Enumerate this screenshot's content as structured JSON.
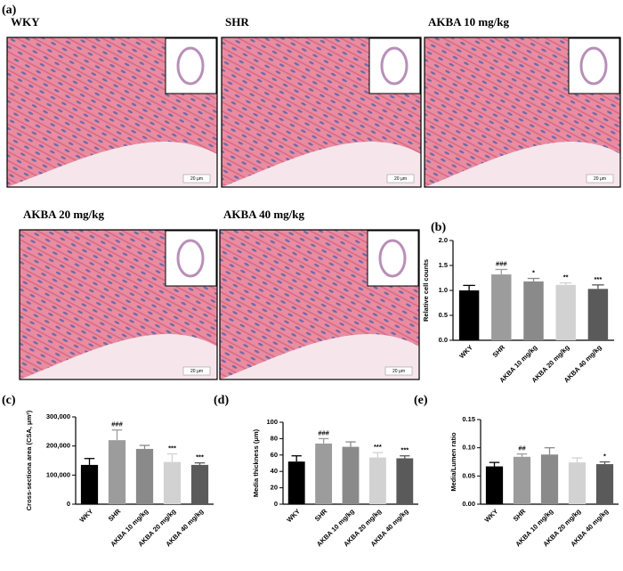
{
  "figure": {
    "panel_label": "(a)",
    "images": [
      {
        "title": "WKY",
        "scale": "20 μm"
      },
      {
        "title": "SHR",
        "scale": "20 μm"
      },
      {
        "title": "AKBA 10 mg/kg",
        "scale": "20 μm"
      },
      {
        "title": "AKBA 20 mg/kg",
        "scale": "20 μm"
      },
      {
        "title": "AKBA 40 mg/kg",
        "scale": "20 μm"
      }
    ]
  },
  "chart_data": [
    {
      "type": "bar",
      "panel_label": "(b)",
      "y_label": "Relative cell counts",
      "categories": [
        "WKY",
        "SHR",
        "AKBA 10 mg/kg",
        "AKBA 20 mg/kg",
        "AKBA 40 mg/kg"
      ],
      "values": [
        1.0,
        1.32,
        1.18,
        1.11,
        1.03
      ],
      "errors": [
        0.1,
        0.1,
        0.06,
        0.04,
        0.08
      ],
      "annotations": [
        null,
        "###",
        "*",
        "**",
        "***"
      ],
      "colors": [
        "#000000",
        "#9c9c9c",
        "#8a8a8a",
        "#d2d2d2",
        "#5a5a5a"
      ],
      "ylim": [
        0,
        2
      ],
      "yticks": [
        {
          "value": 0,
          "label": "0.0"
        },
        0.5,
        {
          "value": 1,
          "label": "1.0"
        },
        1.5,
        {
          "value": 2,
          "label": "2.0"
        }
      ]
    },
    {
      "type": "bar",
      "panel_label": "(c)",
      "y_label": "Cross-sectiona area (CSA, μm²)",
      "categories": [
        "WKY",
        "SHR",
        "AKBA 10 mg/kg",
        "AKBA 20 mg/kg",
        "AKBA 40 mg/kg"
      ],
      "values": [
        135000,
        220000,
        190000,
        145000,
        135000
      ],
      "errors": [
        22000,
        35000,
        12000,
        28000,
        7000
      ],
      "annotations": [
        null,
        "###",
        null,
        "***",
        "***"
      ],
      "colors": [
        "#000000",
        "#9c9c9c",
        "#8a8a8a",
        "#d2d2d2",
        "#5a5a5a"
      ],
      "ylim": [
        0,
        300000
      ],
      "yticks": [
        0,
        {
          "value": 100000,
          "label": "100,000"
        },
        {
          "value": 200000,
          "label": "200,000"
        },
        {
          "value": 300000,
          "label": "300,000"
        }
      ]
    },
    {
      "type": "bar",
      "panel_label": "(d)",
      "y_label": "Media thickness (μm)",
      "categories": [
        "WKY",
        "SHR",
        "AKBA 10 mg/kg",
        "AKBA 20 mg/kg",
        "AKBA 40 mg/kg"
      ],
      "values": [
        52,
        74,
        70,
        57,
        56
      ],
      "errors": [
        7,
        6,
        6,
        6,
        3
      ],
      "annotations": [
        null,
        "###",
        null,
        "***",
        "***"
      ],
      "colors": [
        "#000000",
        "#9c9c9c",
        "#8a8a8a",
        "#d2d2d2",
        "#5a5a5a"
      ],
      "ylim": [
        0,
        100
      ],
      "yticks": [
        0,
        20,
        40,
        60,
        80,
        100
      ]
    },
    {
      "type": "bar",
      "panel_label": "(e)",
      "y_label": "Media/Lumen ratio",
      "categories": [
        "WKY",
        "SHR",
        "AKBA 10 mg/kg",
        "AKBA 20 mg/kg",
        "AKBA 40 mg/kg"
      ],
      "values": [
        0.067,
        0.084,
        0.088,
        0.074,
        0.071
      ],
      "errors": [
        0.007,
        0.005,
        0.012,
        0.008,
        0.004
      ],
      "annotations": [
        null,
        "##",
        null,
        null,
        "*"
      ],
      "colors": [
        "#000000",
        "#9c9c9c",
        "#8a8a8a",
        "#d2d2d2",
        "#5a5a5a"
      ],
      "ylim": [
        0,
        0.15
      ],
      "yticks": [
        {
          "value": 0,
          "label": "0.00"
        },
        0.05,
        {
          "value": 0.1,
          "label": "0.10"
        },
        0.15
      ]
    }
  ]
}
